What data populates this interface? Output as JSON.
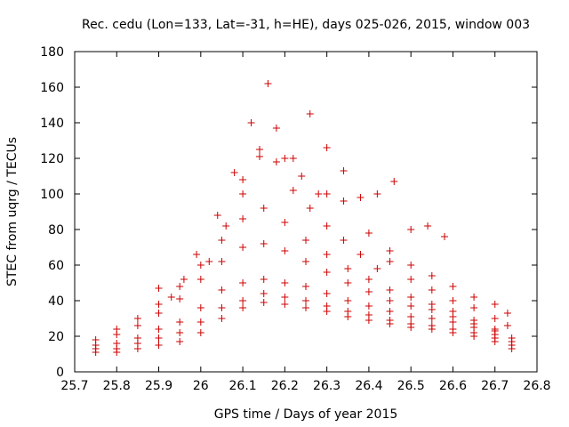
{
  "chart_data": {
    "type": "scatter",
    "title": "Rec. cedu (Lon=133, Lat=-31, h=HE), days 025-026, 2015, window 003",
    "xlabel": "GPS time / Days of year 2015",
    "ylabel": "STEC from uqrg / TECUs",
    "xlim": [
      25.7,
      26.8
    ],
    "ylim": [
      0,
      180
    ],
    "x_ticks": [
      "25.7",
      "25.8",
      "25.9",
      "26",
      "26.1",
      "26.2",
      "26.3",
      "26.4",
      "26.5",
      "26.6",
      "26.7",
      "26.8"
    ],
    "y_ticks": [
      "0",
      "20",
      "40",
      "60",
      "80",
      "100",
      "120",
      "140",
      "160",
      "180"
    ],
    "grid": false,
    "marker": "+",
    "marker_color": "#cc0000",
    "tracks": [
      {
        "x": [
          25.75,
          25.8,
          25.85,
          25.9,
          25.95,
          26.0,
          26.05,
          26.1,
          26.15,
          26.2,
          26.25,
          26.3,
          26.35,
          26.4,
          26.45,
          26.5,
          26.55,
          26.6,
          26.65,
          26.7,
          26.74
        ],
        "y": [
          11,
          11,
          13,
          15,
          17,
          22,
          30,
          36,
          39,
          38,
          36,
          34,
          31,
          29,
          27,
          25,
          24,
          22,
          20,
          17,
          13
        ]
      },
      {
        "x": [
          25.75,
          25.8,
          25.85,
          25.9,
          25.95,
          26.0,
          26.05,
          26.1,
          26.15,
          26.2,
          26.25,
          26.3,
          26.35,
          26.4,
          26.45,
          26.5,
          26.55,
          26.6,
          26.65,
          26.7,
          26.74
        ],
        "y": [
          13,
          13,
          16,
          19,
          22,
          28,
          36,
          40,
          44,
          42,
          40,
          37,
          34,
          32,
          29,
          27,
          26,
          24,
          22,
          19,
          15
        ]
      },
      {
        "x": [
          25.75,
          25.8,
          25.85,
          25.9,
          25.95,
          26.0,
          26.05,
          26.1,
          26.15,
          26.2,
          26.25,
          26.3,
          26.35,
          26.4,
          26.45,
          26.5,
          26.55,
          26.6,
          26.65,
          26.7,
          26.74
        ],
        "y": [
          15,
          16,
          19,
          24,
          28,
          36,
          46,
          50,
          52,
          50,
          48,
          44,
          40,
          37,
          34,
          31,
          30,
          28,
          25,
          21,
          17
        ]
      },
      {
        "x": [
          25.75,
          25.8,
          25.85,
          25.9,
          25.95,
          26.0,
          26.05,
          26.1,
          26.15,
          26.2,
          26.25,
          26.3,
          26.35,
          26.4,
          26.45,
          26.5,
          26.55,
          26.6,
          26.65,
          26.7,
          26.74
        ],
        "y": [
          18,
          21,
          26,
          33,
          41,
          52,
          62,
          70,
          72,
          68,
          62,
          56,
          50,
          45,
          40,
          37,
          35,
          31,
          27,
          23,
          19
        ]
      },
      {
        "x": [
          25.8,
          25.85,
          25.9,
          25.95,
          26.0,
          26.05,
          26.1,
          26.15,
          26.2,
          26.25,
          26.3,
          26.35,
          26.4,
          26.45,
          26.5,
          26.55,
          26.6,
          26.65,
          26.7
        ],
        "y": [
          24,
          30,
          38,
          48,
          60,
          74,
          86,
          92,
          84,
          74,
          66,
          58,
          52,
          46,
          42,
          38,
          34,
          29,
          24
        ]
      },
      {
        "x": [
          26.02,
          26.06,
          26.1,
          26.14,
          26.18,
          26.22,
          26.26,
          26.3,
          26.34,
          26.38,
          26.42
        ],
        "y": [
          62,
          82,
          100,
          125,
          118,
          102,
          92,
          82,
          74,
          66,
          58
        ]
      },
      {
        "x": [
          26.04,
          26.08,
          26.12,
          26.16,
          26.2,
          26.24,
          26.28
        ],
        "y": [
          88,
          112,
          140,
          162,
          120,
          110,
          100
        ]
      },
      {
        "x": [
          26.1,
          26.14,
          26.18,
          26.22,
          26.26,
          26.3,
          26.34
        ],
        "y": [
          108,
          121,
          137,
          120,
          145,
          126,
          113
        ]
      },
      {
        "x": [
          26.3,
          26.34,
          26.38,
          26.42,
          26.46,
          26.5,
          26.54,
          26.58
        ],
        "y": [
          100,
          96,
          98,
          100,
          107,
          80,
          82,
          76
        ]
      },
      {
        "x": [
          26.4,
          26.45,
          26.5,
          26.55,
          26.6,
          26.65,
          26.7,
          26.73
        ],
        "y": [
          78,
          68,
          60,
          54,
          48,
          42,
          38,
          33
        ]
      },
      {
        "x": [
          26.45,
          26.5,
          26.55,
          26.6,
          26.65,
          26.7,
          26.73
        ],
        "y": [
          62,
          52,
          46,
          40,
          36,
          30,
          26
        ]
      },
      {
        "x": [
          25.9,
          25.93,
          25.96,
          25.99
        ],
        "y": [
          47,
          42,
          52,
          66
        ]
      }
    ]
  }
}
